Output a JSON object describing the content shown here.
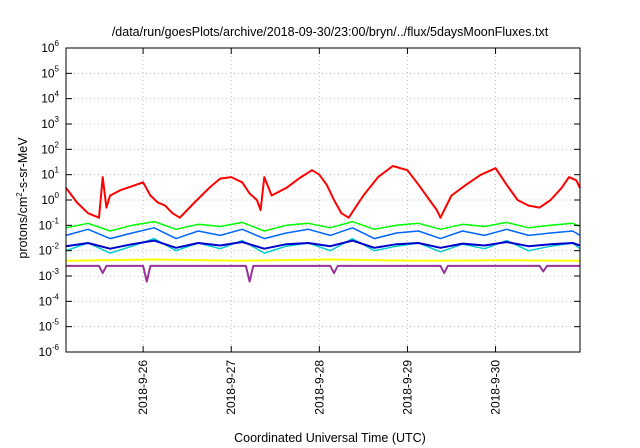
{
  "chart_data": {
    "type": "line",
    "title": "/data/run/goesPlots/archive/2018-09-30/23:00/bryn/../flux/5daysMoonFluxes.txt",
    "xlabel": "Coordinated Universal Time (UTC)",
    "ylabel": "protons/cm2-s-sr-MeV",
    "ylabel_parts": {
      "base": "protons/cm",
      "exp": "2",
      "rest": "-s-sr-MeV"
    },
    "y_scale": "log",
    "ylim": [
      1e-06,
      1000000.0
    ],
    "y_ticks": [
      {
        "base": "10",
        "exp": "-6",
        "value": 1e-06
      },
      {
        "base": "10",
        "exp": "-5",
        "value": 1e-05
      },
      {
        "base": "10",
        "exp": "-4",
        "value": 0.0001
      },
      {
        "base": "10",
        "exp": "-3",
        "value": 0.001
      },
      {
        "base": "10",
        "exp": "-2",
        "value": 0.01
      },
      {
        "base": "10",
        "exp": "-1",
        "value": 0.1
      },
      {
        "base": "10",
        "exp": "0",
        "value": 1
      },
      {
        "base": "10",
        "exp": "1",
        "value": 10
      },
      {
        "base": "10",
        "exp": "2",
        "value": 100
      },
      {
        "base": "10",
        "exp": "3",
        "value": 1000
      },
      {
        "base": "10",
        "exp": "4",
        "value": 10000
      },
      {
        "base": "10",
        "exp": "5",
        "value": 100000
      },
      {
        "base": "10",
        "exp": "6",
        "value": 1000000
      }
    ],
    "xlim": [
      "2018-09-25T03:00",
      "2018-09-30T23:00"
    ],
    "x_ticks": [
      "2018-9-26",
      "2018-9-27",
      "2018-9-28",
      "2018-9-29",
      "2018-9-30"
    ],
    "grid": true,
    "legend": "none",
    "series": [
      {
        "color": "#ff0000",
        "line_width": 2,
        "x": [
          "2018-09-25T03:00",
          "2018-09-25T06:00",
          "2018-09-25T09:00",
          "2018-09-25T12:00",
          "2018-09-25T13:00",
          "2018-09-25T14:00",
          "2018-09-25T15:00",
          "2018-09-25T18:00",
          "2018-09-25T21:00",
          "2018-09-26T00:00",
          "2018-09-26T02:00",
          "2018-09-26T04:00",
          "2018-09-26T06:00",
          "2018-09-26T08:00",
          "2018-09-26T10:00",
          "2018-09-26T14:00",
          "2018-09-26T18:00",
          "2018-09-26T21:00",
          "2018-09-27T00:00",
          "2018-09-27T03:00",
          "2018-09-27T05:00",
          "2018-09-27T07:00",
          "2018-09-27T08:00",
          "2018-09-27T09:00",
          "2018-09-27T11:00",
          "2018-09-27T15:00",
          "2018-09-27T19:00",
          "2018-09-27T22:00",
          "2018-09-28T00:00",
          "2018-09-28T02:00",
          "2018-09-28T04:00",
          "2018-09-28T06:00",
          "2018-09-28T08:00",
          "2018-09-28T12:00",
          "2018-09-28T16:00",
          "2018-09-28T20:00",
          "2018-09-29T00:00",
          "2018-09-29T03:00",
          "2018-09-29T06:00",
          "2018-09-29T08:00",
          "2018-09-29T09:00",
          "2018-09-29T10:00",
          "2018-09-29T12:00",
          "2018-09-29T16:00",
          "2018-09-29T20:00",
          "2018-09-30T00:00",
          "2018-09-30T03:00",
          "2018-09-30T06:00",
          "2018-09-30T09:00",
          "2018-09-30T12:00",
          "2018-09-30T15:00",
          "2018-09-30T18:00",
          "2018-09-30T20:00",
          "2018-09-30T22:00",
          "2018-09-30T23:00"
        ],
        "values": [
          3,
          0.8,
          0.3,
          0.2,
          8,
          0.5,
          1.5,
          2.5,
          3.5,
          5,
          1.5,
          0.8,
          0.6,
          0.3,
          0.2,
          0.8,
          3,
          7,
          8,
          5,
          1.8,
          1,
          0.4,
          8,
          1.5,
          3,
          8,
          15,
          10,
          4,
          1,
          0.3,
          0.2,
          1.5,
          8,
          22,
          15,
          4,
          1,
          0.4,
          0.2,
          0.4,
          1.5,
          4,
          10,
          18,
          4,
          1,
          0.6,
          0.5,
          1,
          3,
          8,
          6,
          3
        ]
      },
      {
        "color": "#00ff00",
        "line_width": 1.5,
        "x": [
          "2018-09-25T03:00",
          "2018-09-25T09:00",
          "2018-09-25T15:00",
          "2018-09-25T21:00",
          "2018-09-26T03:00",
          "2018-09-26T09:00",
          "2018-09-26T15:00",
          "2018-09-26T21:00",
          "2018-09-27T03:00",
          "2018-09-27T09:00",
          "2018-09-27T15:00",
          "2018-09-27T21:00",
          "2018-09-28T03:00",
          "2018-09-28T09:00",
          "2018-09-28T15:00",
          "2018-09-28T21:00",
          "2018-09-29T03:00",
          "2018-09-29T09:00",
          "2018-09-29T15:00",
          "2018-09-29T21:00",
          "2018-09-30T03:00",
          "2018-09-30T09:00",
          "2018-09-30T15:00",
          "2018-09-30T21:00",
          "2018-09-30T23:00"
        ],
        "values": [
          0.08,
          0.12,
          0.06,
          0.1,
          0.14,
          0.07,
          0.11,
          0.09,
          0.13,
          0.06,
          0.1,
          0.12,
          0.08,
          0.14,
          0.07,
          0.1,
          0.12,
          0.07,
          0.11,
          0.09,
          0.13,
          0.08,
          0.1,
          0.12,
          0.09
        ]
      },
      {
        "color": "#00cccc",
        "line_width": 1.5,
        "x": [
          "2018-09-25T03:00",
          "2018-09-25T09:00",
          "2018-09-25T15:00",
          "2018-09-25T21:00",
          "2018-09-26T03:00",
          "2018-09-26T09:00",
          "2018-09-26T15:00",
          "2018-09-26T21:00",
          "2018-09-27T03:00",
          "2018-09-27T09:00",
          "2018-09-27T15:00",
          "2018-09-27T21:00",
          "2018-09-28T03:00",
          "2018-09-28T09:00",
          "2018-09-28T15:00",
          "2018-09-28T21:00",
          "2018-09-29T03:00",
          "2018-09-29T09:00",
          "2018-09-29T15:00",
          "2018-09-29T21:00",
          "2018-09-30T03:00",
          "2018-09-30T09:00",
          "2018-09-30T15:00",
          "2018-09-30T21:00",
          "2018-09-30T23:00"
        ],
        "values": [
          0.01,
          0.02,
          0.008,
          0.015,
          0.03,
          0.01,
          0.02,
          0.012,
          0.025,
          0.008,
          0.015,
          0.02,
          0.01,
          0.03,
          0.01,
          0.015,
          0.02,
          0.009,
          0.018,
          0.012,
          0.025,
          0.01,
          0.015,
          0.02,
          0.012
        ]
      },
      {
        "color": "#0066ff",
        "line_width": 1.5,
        "x": [
          "2018-09-25T03:00",
          "2018-09-25T09:00",
          "2018-09-25T15:00",
          "2018-09-25T21:00",
          "2018-09-26T03:00",
          "2018-09-26T09:00",
          "2018-09-26T15:00",
          "2018-09-26T21:00",
          "2018-09-27T03:00",
          "2018-09-27T09:00",
          "2018-09-27T15:00",
          "2018-09-27T21:00",
          "2018-09-28T03:00",
          "2018-09-28T09:00",
          "2018-09-28T15:00",
          "2018-09-28T21:00",
          "2018-09-29T03:00",
          "2018-09-29T09:00",
          "2018-09-29T15:00",
          "2018-09-29T21:00",
          "2018-09-30T03:00",
          "2018-09-30T09:00",
          "2018-09-30T15:00",
          "2018-09-30T21:00",
          "2018-09-30T23:00"
        ],
        "values": [
          0.04,
          0.07,
          0.03,
          0.05,
          0.08,
          0.03,
          0.06,
          0.04,
          0.07,
          0.03,
          0.05,
          0.07,
          0.04,
          0.08,
          0.03,
          0.05,
          0.06,
          0.03,
          0.06,
          0.04,
          0.07,
          0.04,
          0.05,
          0.06,
          0.04
        ]
      },
      {
        "color": "#0000cc",
        "line_width": 2,
        "x": [
          "2018-09-25T03:00",
          "2018-09-25T09:00",
          "2018-09-25T15:00",
          "2018-09-25T21:00",
          "2018-09-26T03:00",
          "2018-09-26T09:00",
          "2018-09-26T15:00",
          "2018-09-26T21:00",
          "2018-09-27T03:00",
          "2018-09-27T09:00",
          "2018-09-27T15:00",
          "2018-09-27T21:00",
          "2018-09-28T03:00",
          "2018-09-28T09:00",
          "2018-09-28T15:00",
          "2018-09-28T21:00",
          "2018-09-29T03:00",
          "2018-09-29T09:00",
          "2018-09-29T15:00",
          "2018-09-29T21:00",
          "2018-09-30T03:00",
          "2018-09-30T09:00",
          "2018-09-30T15:00",
          "2018-09-30T21:00",
          "2018-09-30T23:00"
        ],
        "values": [
          0.015,
          0.02,
          0.012,
          0.018,
          0.025,
          0.013,
          0.02,
          0.016,
          0.022,
          0.012,
          0.018,
          0.02,
          0.015,
          0.025,
          0.013,
          0.018,
          0.02,
          0.013,
          0.019,
          0.016,
          0.022,
          0.015,
          0.018,
          0.02,
          0.016
        ]
      },
      {
        "color": "#ffff00",
        "line_width": 2,
        "x": [
          "2018-09-25T03:00",
          "2018-09-26T03:00",
          "2018-09-27T03:00",
          "2018-09-28T03:00",
          "2018-09-29T03:00",
          "2018-09-30T03:00",
          "2018-09-30T23:00"
        ],
        "values": [
          0.004,
          0.0045,
          0.004,
          0.0045,
          0.004,
          0.0042,
          0.004
        ]
      },
      {
        "color": "#993399",
        "line_width": 2,
        "x": [
          "2018-09-25T03:00",
          "2018-09-25T12:00",
          "2018-09-25T13:00",
          "2018-09-25T14:00",
          "2018-09-26T00:00",
          "2018-09-26T01:00",
          "2018-09-26T02:00",
          "2018-09-27T04:00",
          "2018-09-27T05:00",
          "2018-09-27T06:00",
          "2018-09-28T03:00",
          "2018-09-28T04:00",
          "2018-09-28T05:00",
          "2018-09-29T09:00",
          "2018-09-29T10:00",
          "2018-09-29T11:00",
          "2018-09-30T12:00",
          "2018-09-30T13:00",
          "2018-09-30T14:00",
          "2018-09-30T23:00"
        ],
        "values": [
          0.0025,
          0.0025,
          0.0013,
          0.0025,
          0.0025,
          0.0006,
          0.0025,
          0.0025,
          0.0006,
          0.0025,
          0.0025,
          0.0013,
          0.0025,
          0.0025,
          0.0013,
          0.0025,
          0.0025,
          0.0015,
          0.0025,
          0.0025
        ]
      }
    ]
  }
}
